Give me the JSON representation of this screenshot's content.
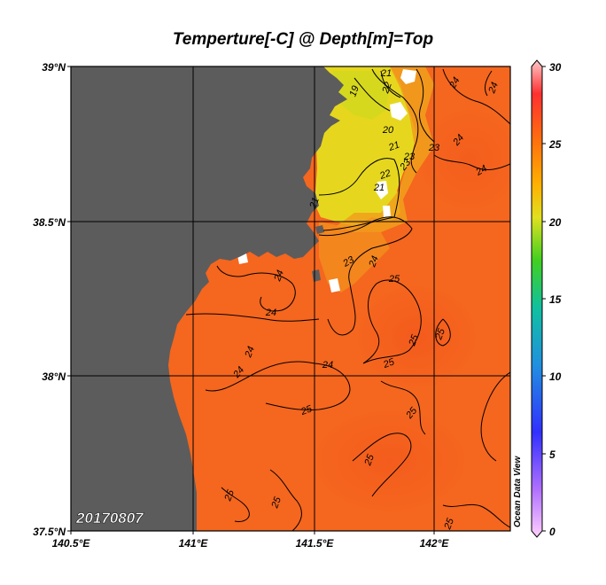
{
  "title": "Temperture[-C] @ Depth[m]=Top",
  "date_stamp": "20170807",
  "watermark": "Ocean Data View",
  "axes": {
    "lat_labels": [
      "39°N",
      "38.5°N",
      "38°N",
      "37.5°N"
    ],
    "lon_labels": [
      "140.5°E",
      "141°E",
      "141.5°E",
      "142°E"
    ]
  },
  "colorbar": {
    "ticks": [
      "30",
      "25",
      "20",
      "15",
      "10",
      "5",
      "0"
    ],
    "range": [
      0,
      30
    ]
  },
  "colors": {
    "land": "#5c5c5c",
    "warm_sea": "#f5661e",
    "cool_sea": "#e6d21e",
    "void": "#ffffff"
  },
  "contour_labels": [
    "21",
    "22",
    "19",
    "23",
    "24",
    "24",
    "20",
    "21",
    "23",
    "24",
    "22",
    "21",
    "21",
    "23",
    "24",
    "23",
    "24",
    "25",
    "24",
    "24",
    "25",
    "25",
    "24",
    "24",
    "25",
    "24",
    "25",
    "25",
    "25",
    "25",
    "25",
    "25"
  ]
}
